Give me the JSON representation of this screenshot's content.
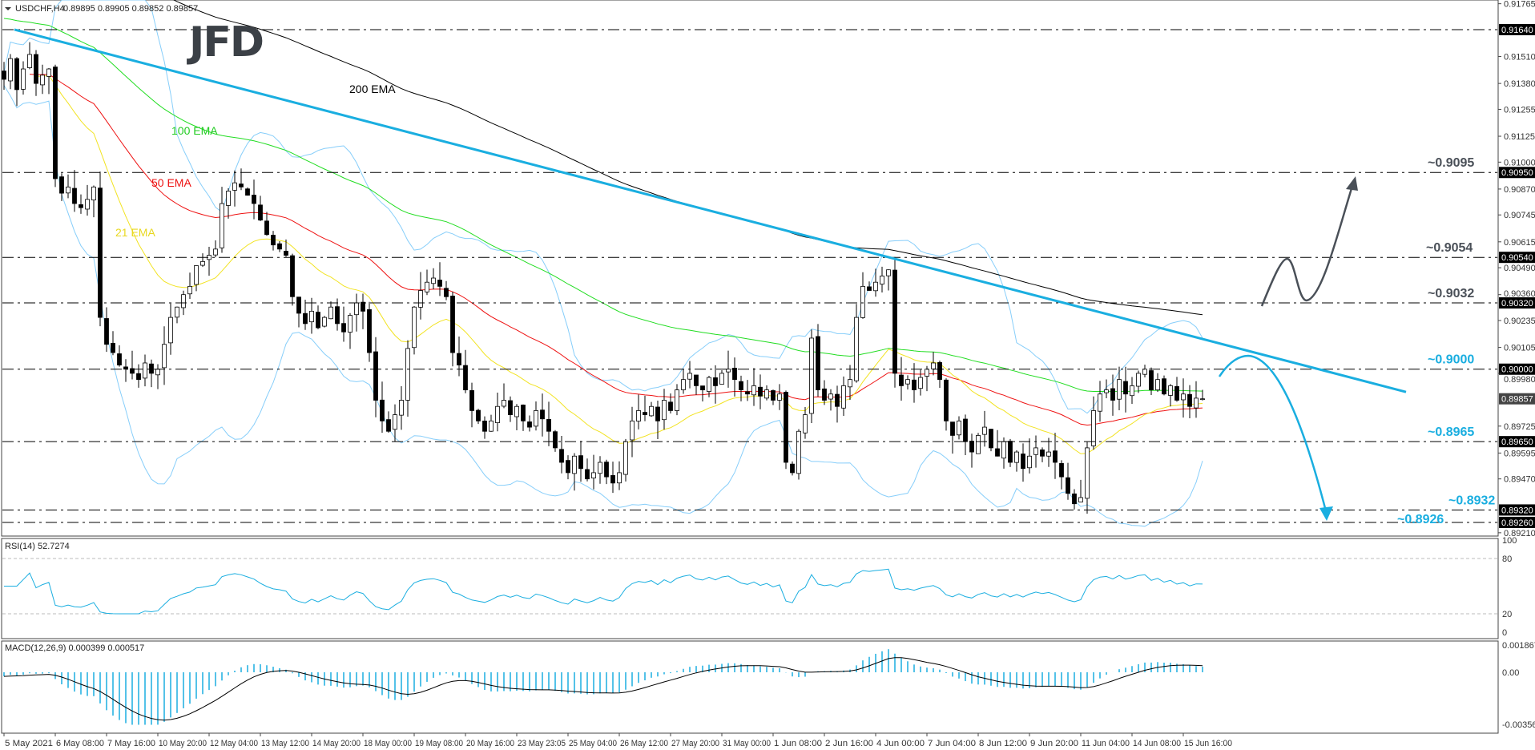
{
  "header": {
    "symbol": "USDCHF,H4",
    "ohlc": "0.89895 0.89905 0.89852 0.89857"
  },
  "logo": "JFD",
  "indicators": {
    "ema200_label": "200 EMA",
    "ema100_label": "100 EMA",
    "ema50_label": "50 EMA",
    "ema21_label": "21 EMA",
    "rsi_header": "RSI(14) 52.7274",
    "macd_header": "MACD(12,26,9) 0.000399 0.000517"
  },
  "colors": {
    "ema200": "#000000",
    "ema100": "#22dd22",
    "ema50": "#ee1111",
    "ema21": "#f2e322",
    "bollinger": "#87cefa",
    "trendline": "#1aaee0",
    "level_dark": "#4a5058",
    "level_cyan": "#1aaee0"
  },
  "chart_data": {
    "type": "candlestick",
    "symbol": "USDCHF",
    "timeframe": "H4",
    "ylim": [
      0.89194,
      0.91783
    ],
    "price_ticks": [
      "0.91765",
      "0.91510",
      "0.91380",
      "0.91255",
      "0.91125",
      "0.91000",
      "0.90870",
      "0.90745",
      "0.90615",
      "0.90490",
      "0.90360",
      "0.90235",
      "0.90105",
      "0.89980",
      "0.89725",
      "0.89595",
      "0.89470",
      "0.89210"
    ],
    "current_price": "0.89857",
    "closes": [
      0.914,
      0.915,
      0.9135,
      0.9145,
      0.9152,
      0.9138,
      0.9142,
      0.9145,
      0.9092,
      0.9085,
      0.9088,
      0.908,
      0.9078,
      0.9082,
      0.9088,
      0.9025,
      0.9012,
      0.9008,
      0.9002,
      0.9,
      0.8998,
      0.8995,
      0.9003,
      0.8998,
      0.9,
      0.9012,
      0.9025,
      0.903,
      0.9036,
      0.904,
      0.905,
      0.9052,
      0.9055,
      0.9058,
      0.908,
      0.9086,
      0.909,
      0.9088,
      0.9084,
      0.908,
      0.9072,
      0.9065,
      0.906,
      0.9058,
      0.9055,
      0.9035,
      0.9027,
      0.9022,
      0.9028,
      0.902,
      0.9025,
      0.903,
      0.9022,
      0.9018,
      0.9026,
      0.9032,
      0.9028,
      0.9008,
      0.8985,
      0.8975,
      0.897,
      0.8978,
      0.8985,
      0.901,
      0.903,
      0.9038,
      0.9042,
      0.9044,
      0.904,
      0.9035,
      0.9008,
      0.9002,
      0.899,
      0.898,
      0.8975,
      0.897,
      0.8975,
      0.8982,
      0.8985,
      0.8978,
      0.8982,
      0.8975,
      0.8972,
      0.898,
      0.8976,
      0.897,
      0.8962,
      0.8955,
      0.895,
      0.8958,
      0.8952,
      0.8947,
      0.895,
      0.8955,
      0.8948,
      0.8945,
      0.895,
      0.8965,
      0.8975,
      0.898,
      0.8978,
      0.8982,
      0.8975,
      0.8985,
      0.898,
      0.899,
      0.8995,
      0.8998,
      0.8992,
      0.899,
      0.8996,
      0.8992,
      0.8998,
      0.9,
      0.8995,
      0.899,
      0.8988,
      0.8992,
      0.8987,
      0.899,
      0.8985,
      0.8988,
      0.8955,
      0.895,
      0.897,
      0.8978,
      0.9015,
      0.899,
      0.8985,
      0.8988,
      0.8982,
      0.8992,
      0.8995,
      0.9025,
      0.904,
      0.9038,
      0.9042,
      0.9045,
      0.9048,
      0.8998,
      0.8992,
      0.8995,
      0.899,
      0.8996,
      0.9,
      0.9003,
      0.8995,
      0.8975,
      0.8968,
      0.8975,
      0.8965,
      0.896,
      0.8968,
      0.8972,
      0.8962,
      0.8958,
      0.8965,
      0.8955,
      0.896,
      0.8952,
      0.8958,
      0.8962,
      0.8958,
      0.896,
      0.8955,
      0.8948,
      0.894,
      0.8935,
      0.8938,
      0.8962,
      0.898,
      0.8988,
      0.899,
      0.8985,
      0.8995,
      0.8988,
      0.8992,
      0.8998,
      0.9,
      0.899,
      0.8995,
      0.8988,
      0.8992,
      0.8985,
      0.8988,
      0.8982,
      0.8986,
      0.89857
    ],
    "time_labels": [
      "5 May 2021",
      "6 May 08:00",
      "7 May 16:00",
      "10 May 20:00",
      "12 May 04:00",
      "13 May 12:00",
      "14 May 20:00",
      "18 May 00:00",
      "19 May 08:00",
      "20 May 16:00",
      "23 May 23:05",
      "25 May 04:00",
      "26 May 12:00",
      "27 May 20:00",
      "31 May 00:00",
      "1 Jun 08:00",
      "2 Jun 16:00",
      "4 Jun 00:00",
      "7 Jun 04:00",
      "8 Jun 12:00",
      "9 Jun 20:00",
      "11 Jun 04:00",
      "14 Jun 08:00",
      "15 Jun 16:00"
    ],
    "levels": [
      {
        "price": 0.9164,
        "axis_label": "0.91640",
        "text": "",
        "color": "dark"
      },
      {
        "price": 0.9095,
        "axis_label": "0.90950",
        "text": "~0.9095",
        "color": "dark"
      },
      {
        "price": 0.9054,
        "axis_label": "0.90540",
        "text": "~0.9054",
        "color": "dark"
      },
      {
        "price": 0.9032,
        "axis_label": "0.90320",
        "text": "~0.9032",
        "color": "dark"
      },
      {
        "price": 0.9,
        "axis_label": "0.90000",
        "text": "~0.9000",
        "color": "cyan"
      },
      {
        "price": 0.8965,
        "axis_label": "0.89650",
        "text": "~0.8965",
        "color": "cyan"
      },
      {
        "price": 0.8932,
        "axis_label": "0.89320",
        "text": "~0.8932",
        "color": "cyan"
      },
      {
        "price": 0.8926,
        "axis_label": "0.89260",
        "text": "~0.8926",
        "color": "cyan"
      }
    ],
    "trendline": {
      "from_price": 0.9164,
      "to_price": 0.8989
    },
    "rsi": {
      "levels": [
        80,
        20
      ],
      "axis_ticks": [
        "100",
        "80",
        "20",
        "0"
      ]
    },
    "macd": {
      "axis_ticks": [
        "0.001867",
        "0.00",
        "-0.003566"
      ]
    }
  }
}
